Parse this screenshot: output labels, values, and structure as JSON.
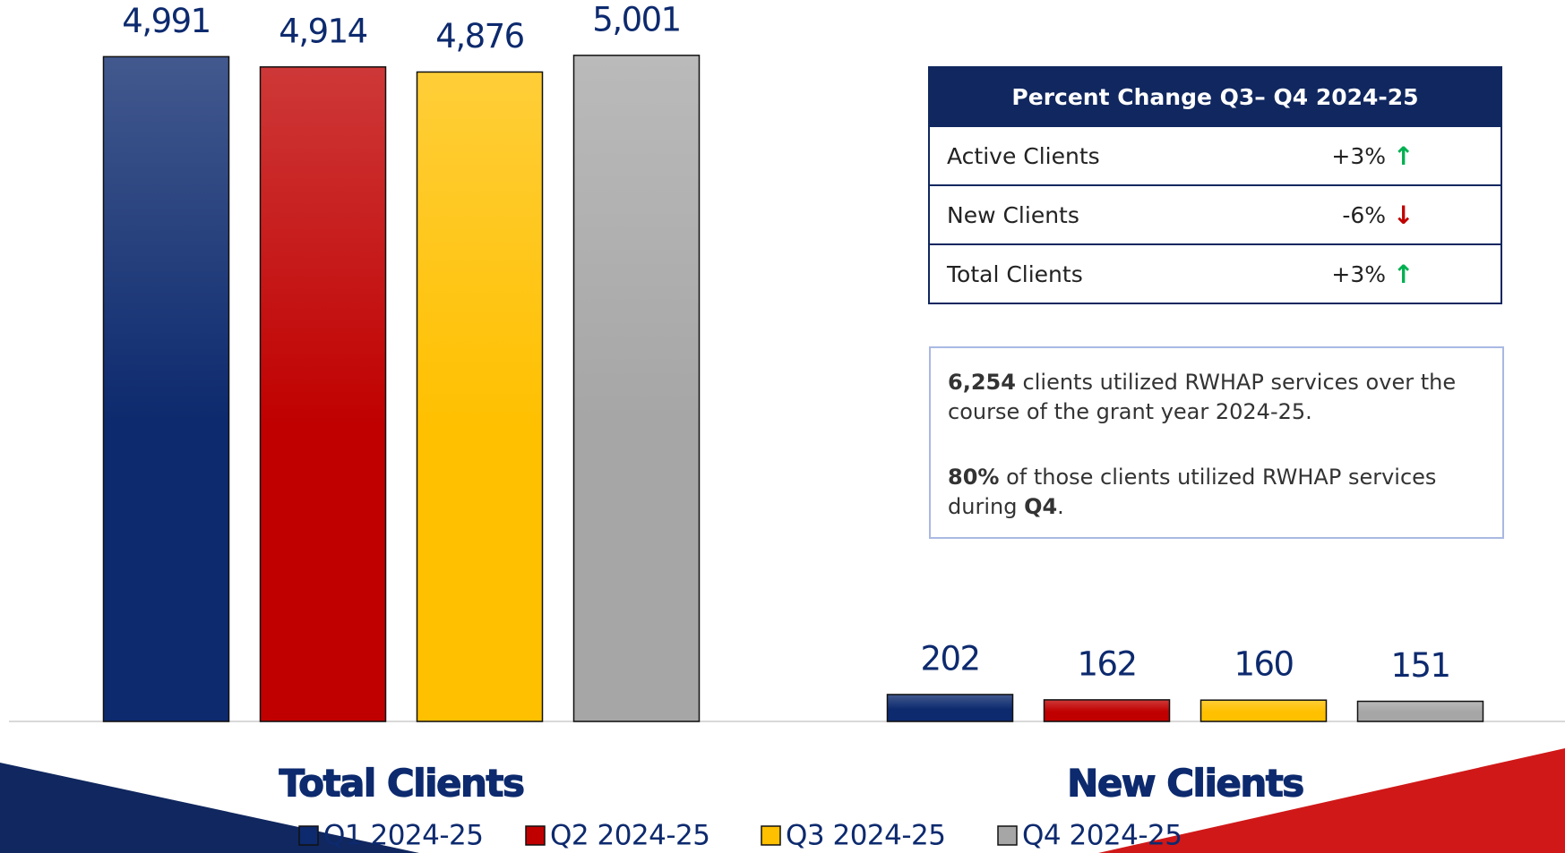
{
  "chart_data": {
    "type": "bar",
    "categories": [
      "Total Clients",
      "New Clients"
    ],
    "series": [
      {
        "name": "Q1 2024-25",
        "color": "#0d2a6e",
        "values": [
          4991,
          202
        ],
        "value_labels": [
          "4,991",
          "202"
        ]
      },
      {
        "name": "Q2 2024-25",
        "color": "#c00000",
        "values": [
          4914,
          162
        ],
        "value_labels": [
          "4,914",
          "162"
        ]
      },
      {
        "name": "Q3 2024-25",
        "color": "#ffc000",
        "values": [
          4876,
          160
        ],
        "value_labels": [
          "4,876",
          "160"
        ]
      },
      {
        "name": "Q4 2024-25",
        "color": "#a6a6a6",
        "values": [
          5001,
          151
        ],
        "value_labels": [
          "5,001",
          "151"
        ]
      }
    ],
    "ylim": [
      0,
      5000
    ]
  },
  "table": {
    "title": "Percent Change Q3– Q4 2024-25",
    "rows": [
      [
        "Active Clients",
        "+3%"
      ],
      [
        "New Clients",
        "-6%"
      ],
      [
        "Total Clients",
        "+3%"
      ]
    ]
  },
  "note": [
    [
      {
        "text": "6,254",
        "bold": true
      },
      {
        "text": " clients utilized RWHAP services over the course of the grant year 2024-25.",
        "bold": false
      }
    ],
    [
      {
        "text": "80%",
        "bold": true
      },
      {
        "text": " of those clients utilized RWHAP services during ",
        "bold": false
      },
      {
        "text": "Q4",
        "bold": true
      },
      {
        "text": ".",
        "bold": false
      }
    ]
  ]
}
